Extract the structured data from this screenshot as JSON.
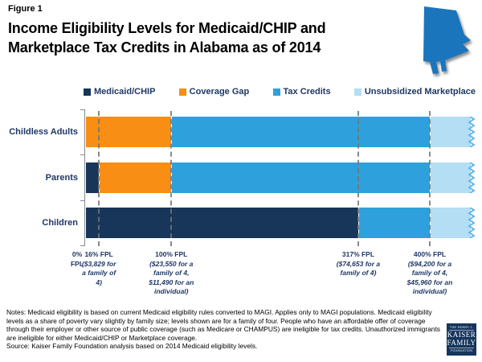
{
  "header": {
    "figure_label": "Figure 1",
    "title_lines": [
      "Income Eligibility Levels for Medicaid/CHIP and",
      "Marketplace Tax Credits in Alabama as of 2014"
    ],
    "state_icon": "alabama",
    "state_color": "#1B75BC"
  },
  "legend": [
    {
      "label": "Medicaid/CHIP",
      "color": "#173659"
    },
    {
      "label": "Coverage Gap",
      "color": "#F88E14"
    },
    {
      "label": "Tax Credits",
      "color": "#2EA1DC"
    },
    {
      "label": "Unsubsidized Marketplace",
      "color": "#B3DEF3"
    }
  ],
  "chart_data": {
    "type": "bar",
    "orientation": "horizontal_stacked",
    "title": "Income Eligibility Levels for Medicaid/CHIP and Marketplace Tax Credits in Alabama as of 2014",
    "xlabel": "",
    "ylabel": "",
    "xlim_fpl": [
      0,
      400
    ],
    "gridlines_fpl": [
      16,
      100,
      317,
      400
    ],
    "categories": [
      "Childless Adults",
      "Parents",
      "Children"
    ],
    "rows": [
      {
        "category": "Childless Adults",
        "segments": [
          {
            "series": "Coverage Gap",
            "from_fpl": 0,
            "to_fpl": 100
          },
          {
            "series": "Tax Credits",
            "from_fpl": 100,
            "to_fpl": 400
          },
          {
            "series": "Unsubsidized Marketplace",
            "from_fpl": 400,
            "to_fpl": null
          }
        ]
      },
      {
        "category": "Parents",
        "segments": [
          {
            "series": "Medicaid/CHIP",
            "from_fpl": 0,
            "to_fpl": 16
          },
          {
            "series": "Coverage Gap",
            "from_fpl": 16,
            "to_fpl": 100
          },
          {
            "series": "Tax Credits",
            "from_fpl": 100,
            "to_fpl": 400
          },
          {
            "series": "Unsubsidized Marketplace",
            "from_fpl": 400,
            "to_fpl": null
          }
        ]
      },
      {
        "category": "Children",
        "segments": [
          {
            "series": "Medicaid/CHIP",
            "from_fpl": 0,
            "to_fpl": 317
          },
          {
            "series": "Tax Credits",
            "from_fpl": 317,
            "to_fpl": 400
          },
          {
            "series": "Unsubsidized Marketplace",
            "from_fpl": 400,
            "to_fpl": null
          }
        ]
      }
    ],
    "axis_ticks": [
      {
        "fpl": 0,
        "bold_lines": [
          "0%",
          "FPL"
        ],
        "italic_lines": []
      },
      {
        "fpl": 16,
        "bold_lines": [
          "16% FPL"
        ],
        "italic_lines": [
          "($3,829 for",
          "a family of",
          "4)"
        ]
      },
      {
        "fpl": 100,
        "bold_lines": [
          "100% FPL"
        ],
        "italic_lines": [
          "($23,550 for a",
          "family of 4,",
          "$11,490 for an",
          "individual)"
        ]
      },
      {
        "fpl": 317,
        "bold_lines": [
          "317% FPL"
        ],
        "italic_lines": [
          "($74,653 for a",
          "family of 4)"
        ]
      },
      {
        "fpl": 400,
        "bold_lines": [
          "400% FPL"
        ],
        "italic_lines": [
          "($94,200 for a",
          "family of 4,",
          "$45,960 for an",
          "individual)"
        ]
      }
    ],
    "beyond_max_note": "Unsubsidized Marketplace bars extend past 400% FPL and end in a torn edge"
  },
  "footer": {
    "notes": "Notes: Medicaid eligibility is based on current Medicaid eligibility rules converted to MAGI. Applies only to MAGI populations. Medicaid eligibility levels as a share of poverty vary slightly by family size; levels shown are for a family of four. People who have an affordable offer of coverage through their employer or other source of public coverage (such as Medicare or CHAMPUS) are ineligible for tax credits. Unauthorized immigrants are ineligible for either Medicaid/CHIP or Marketplace coverage.",
    "source": "Source: Kaiser Family Foundation analysis based on 2014 Medicaid eligibility levels."
  },
  "logo": {
    "top": "THE HENRY J.",
    "name1": "KAISER",
    "name2": "FAMILY",
    "bottom": "FOUNDATION"
  },
  "colors": {
    "navy_text": "#1F3864",
    "title_text": "#000000",
    "gridline": "#757575",
    "axis": "#8a8a8a",
    "torn_edge": "#5FB4E5",
    "logo_bg": "#15355C"
  }
}
